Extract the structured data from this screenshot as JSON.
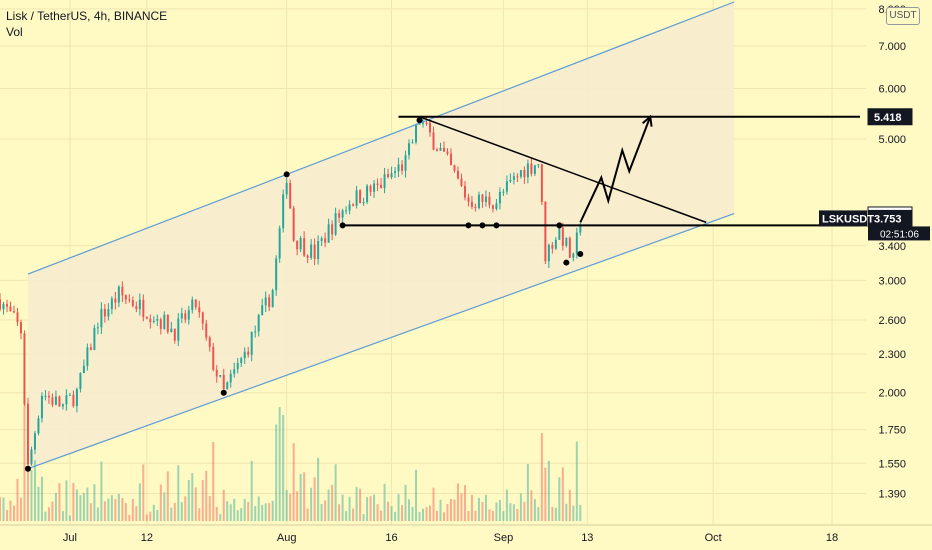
{
  "legend": {
    "symbol_line": "Lisk / TetherUS, 4h, BINANCE",
    "volume_label": "Vol"
  },
  "currency_button": "USDT",
  "colors": {
    "background": "#fff9c4",
    "channel_line": "#5b9bd5",
    "channel_fill": "#f7ecd0",
    "up_candle": "#26a69a",
    "down_candle": "#ef5350",
    "drawing": "#000000",
    "text": "#131722"
  },
  "chart_data": {
    "type": "candlestick",
    "symbol": "LSKUSDT",
    "interval": "4h",
    "exchange": "BINANCE",
    "y_scale": "log",
    "ylim": [
      1.3,
      8.2
    ],
    "y_ticks": [
      "8.000",
      "7.000",
      "6.000",
      "5.000",
      "3.400",
      "3.000",
      "2.600",
      "2.300",
      "2.000",
      "1.750",
      "1.550",
      "1.390"
    ],
    "x_ticks": [
      "Jul",
      "12",
      "Aug",
      "16",
      "Sep",
      "13",
      "Oct",
      "18"
    ],
    "x_tick_dates": [
      "2021-07-01",
      "2021-07-12",
      "2021-08-01",
      "2021-08-16",
      "2021-09-01",
      "2021-09-13",
      "2021-10-01",
      "2021-10-18"
    ],
    "xlim": [
      "2021-06-21",
      "2021-10-22"
    ],
    "price_path": [
      {
        "date": "2021-06-21",
        "close": 2.8
      },
      {
        "date": "2021-06-24",
        "close": 2.5
      },
      {
        "date": "2021-06-25",
        "close": 1.52
      },
      {
        "date": "2021-06-27",
        "close": 2.0
      },
      {
        "date": "2021-06-30",
        "close": 1.9
      },
      {
        "date": "2021-07-02",
        "close": 2.0
      },
      {
        "date": "2021-07-05",
        "close": 2.6
      },
      {
        "date": "2021-07-08",
        "close": 2.85
      },
      {
        "date": "2021-07-12",
        "close": 2.7
      },
      {
        "date": "2021-07-16",
        "close": 2.5
      },
      {
        "date": "2021-07-19",
        "close": 2.75
      },
      {
        "date": "2021-07-21",
        "close": 2.3
      },
      {
        "date": "2021-07-23",
        "close": 2.0
      },
      {
        "date": "2021-07-26",
        "close": 2.3
      },
      {
        "date": "2021-07-30",
        "close": 2.9
      },
      {
        "date": "2021-08-01",
        "close": 4.4
      },
      {
        "date": "2021-08-02",
        "close": 3.5
      },
      {
        "date": "2021-08-05",
        "close": 3.3
      },
      {
        "date": "2021-08-07",
        "close": 3.6
      },
      {
        "date": "2021-08-10",
        "close": 4.0
      },
      {
        "date": "2021-08-14",
        "close": 4.2
      },
      {
        "date": "2021-08-18",
        "close": 4.6
      },
      {
        "date": "2021-08-20",
        "close": 5.35
      },
      {
        "date": "2021-08-23",
        "close": 4.8
      },
      {
        "date": "2021-08-27",
        "close": 4.0
      },
      {
        "date": "2021-08-31",
        "close": 4.0
      },
      {
        "date": "2021-09-04",
        "close": 4.5
      },
      {
        "date": "2021-09-06",
        "close": 4.6
      },
      {
        "date": "2021-09-07",
        "close": 3.3
      },
      {
        "date": "2021-09-09",
        "close": 3.6
      },
      {
        "date": "2021-09-11",
        "close": 3.2
      },
      {
        "date": "2021-09-12",
        "close": 3.753
      }
    ],
    "drawings": {
      "ascending_channel": {
        "lower_line": [
          {
            "date": "2021-06-25",
            "price": 1.52
          },
          {
            "date": "2021-10-04",
            "price": 3.82
          }
        ],
        "upper_line": [
          {
            "date": "2021-06-25",
            "price": 3.07
          },
          {
            "date": "2021-10-04",
            "price": 8.2
          }
        ]
      },
      "resistance_line": {
        "price": 5.418,
        "from": "2021-08-17",
        "to": "2021-10-22"
      },
      "support_line": {
        "price": 3.66,
        "from": "2021-08-09",
        "to": "2021-10-22"
      },
      "descending_line": [
        {
          "date": "2021-08-20",
          "price": 5.418
        },
        {
          "date": "2021-09-30",
          "price": 3.7
        }
      ],
      "projected_path": [
        {
          "date": "2021-09-12",
          "price": 3.7
        },
        {
          "date": "2021-09-15",
          "price": 4.35
        },
        {
          "date": "2021-09-16",
          "price": 4.0
        },
        {
          "date": "2021-09-18",
          "price": 4.8
        },
        {
          "date": "2021-09-19",
          "price": 4.45
        },
        {
          "date": "2021-09-22",
          "price": 5.418
        }
      ],
      "pivot_points": [
        {
          "date": "2021-06-25",
          "price": 1.52
        },
        {
          "date": "2021-07-23",
          "price": 2.0
        },
        {
          "date": "2021-08-01",
          "price": 4.4
        },
        {
          "date": "2021-08-20",
          "price": 5.35
        },
        {
          "date": "2021-09-10",
          "price": 3.2
        },
        {
          "date": "2021-09-12",
          "price": 3.3
        }
      ],
      "support_touches": [
        "2021-08-09",
        "2021-08-27",
        "2021-08-29",
        "2021-08-31",
        "2021-09-09"
      ]
    },
    "price_labels": [
      {
        "text": "5.418",
        "price": 5.418,
        "style": "dark"
      },
      {
        "text": "3.800",
        "price": 3.8,
        "style": "light"
      },
      {
        "text": "3.753",
        "price": 3.753,
        "style": "dark"
      }
    ],
    "last_price_label": {
      "symbol": "LSKUSDT",
      "price": "3.753",
      "countdown": "02:51:06"
    }
  }
}
